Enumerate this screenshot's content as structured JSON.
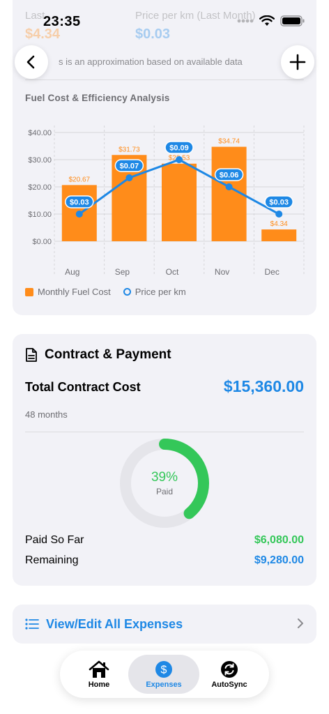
{
  "status_bar": {
    "time": "23:35"
  },
  "top_summary": {
    "last_label": "Last",
    "last_value": "$4.34",
    "price_label": "Price per km (Last Month)",
    "price_value": "$0.03",
    "note_fragment": "s is an approximation based on available data"
  },
  "chart_data": {
    "type": "bar",
    "title": "Fuel Cost & Efficiency Analysis",
    "categories": [
      "Aug",
      "Sep",
      "Oct",
      "Nov",
      "Dec"
    ],
    "y_ticks": [
      "$40.00",
      "$30.00",
      "$20.00",
      "$10.00",
      "$0.00"
    ],
    "ylim": [
      0,
      40
    ],
    "series": [
      {
        "name": "Monthly Fuel Cost",
        "type": "bar",
        "values": [
          20.67,
          31.73,
          28.53,
          34.74,
          4.34
        ],
        "labels": [
          "$20.67",
          "$31.73",
          "$28.53",
          "$34.74",
          "$4.34"
        ],
        "color": "#ff8c1a"
      },
      {
        "name": "Price per km",
        "type": "line",
        "values": [
          0.03,
          0.07,
          0.09,
          0.06,
          0.03
        ],
        "labels": [
          "$0.03",
          "$0.07",
          "$0.09",
          "$0.06",
          "$0.03"
        ],
        "color": "#1e88e5",
        "ylim": [
          0,
          0.12
        ]
      }
    ],
    "legend": "bottom-left",
    "grid": true
  },
  "contract": {
    "title": "Contract & Payment",
    "total_label": "Total Contract Cost",
    "total_value": "$15,360.00",
    "months": "48 months",
    "progress_fraction": 0.39,
    "progress_label": "39%",
    "progress_sub": "Paid",
    "paid_label": "Paid So Far",
    "paid_value": "$6,080.00",
    "remaining_label": "Remaining",
    "remaining_value": "$9,280.00"
  },
  "view_all": {
    "label": "View/Edit All Expenses"
  },
  "tabbar": {
    "tabs": [
      {
        "label": "Home",
        "icon": "house-icon"
      },
      {
        "label": "Expenses",
        "icon": "dollar-circle-icon",
        "selected": true
      },
      {
        "label": "AutoSync",
        "icon": "sync-icon"
      }
    ]
  },
  "colors": {
    "accent": "#1e88e5",
    "bar": "#ff8c1a",
    "success": "#34c759",
    "card": "#f2f2f7"
  }
}
